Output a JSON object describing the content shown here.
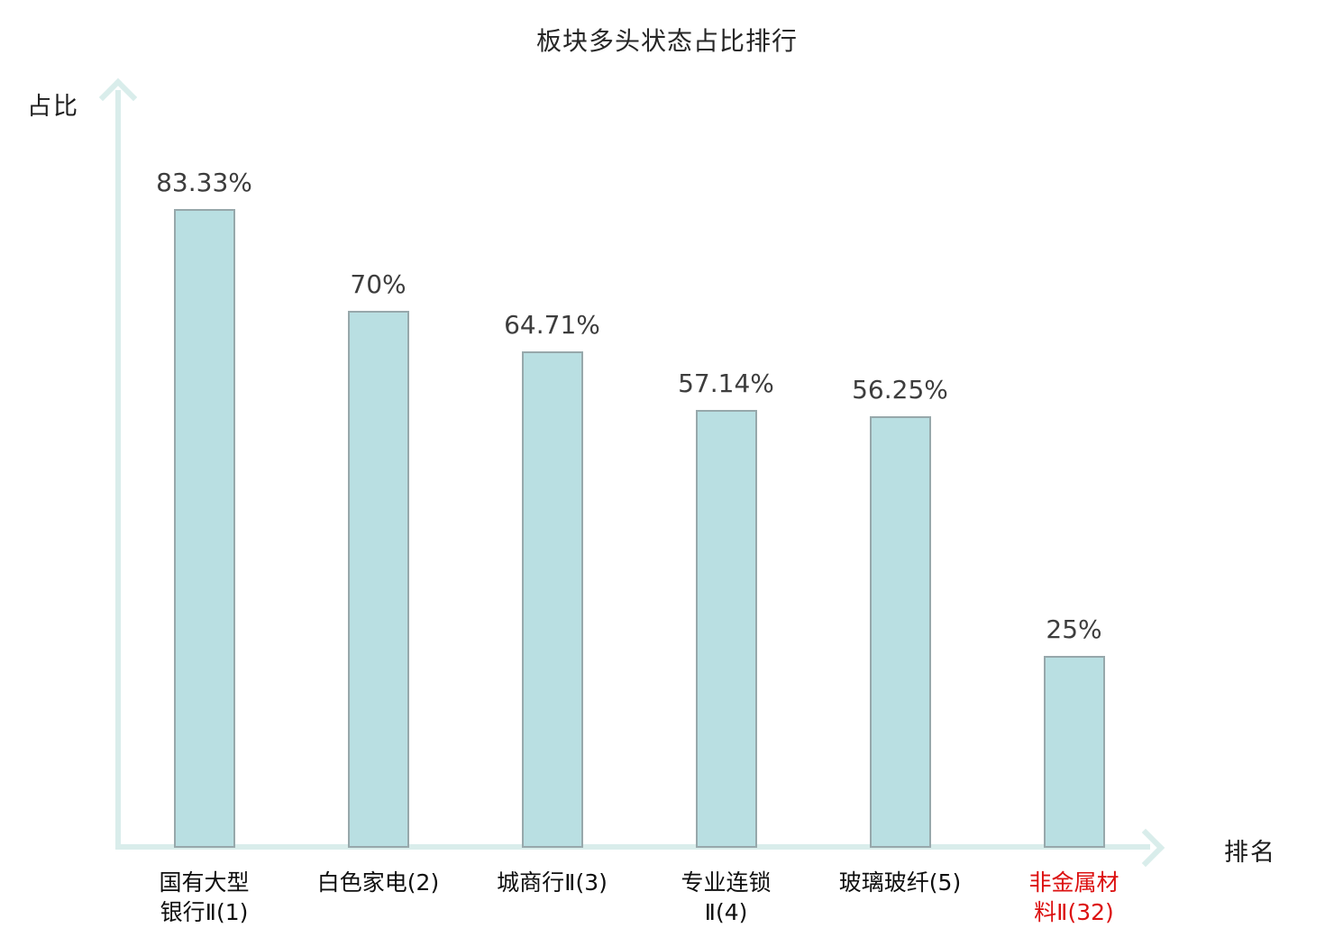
{
  "chart": {
    "title": "板块多头状态占比排行",
    "ylabel": "占比",
    "xlabel": "排名"
  },
  "chart_data": {
    "type": "bar",
    "title": "板块多头状态占比排行",
    "xlabel": "排名",
    "ylabel": "占比",
    "categories": [
      "国有大型银行Ⅱ(1)",
      "白色家电(2)",
      "城商行Ⅱ(3)",
      "专业连锁Ⅱ(4)",
      "玻璃玻纤(5)",
      "非金属材料Ⅱ(32)"
    ],
    "category_lines": [
      [
        "国有大型",
        "银行Ⅱ(1)"
      ],
      [
        "白色家电(2)"
      ],
      [
        "城商行Ⅱ(3)"
      ],
      [
        "专业连锁",
        "Ⅱ(4)"
      ],
      [
        "玻璃玻纤(5)"
      ],
      [
        "非金属材",
        "料Ⅱ(32)"
      ]
    ],
    "values": [
      83.33,
      70,
      64.71,
      57.14,
      56.25,
      25
    ],
    "value_labels": [
      "83.33%",
      "70%",
      "64.71%",
      "57.14%",
      "56.25%",
      "25%"
    ],
    "highlight_index": 5,
    "ylim": [
      0,
      100
    ],
    "grid": false,
    "legend": "none",
    "colors": {
      "bar_fill": "#b9dfe2",
      "bar_border": "#97a8ab",
      "axis": "#d9edeb",
      "value_text": "#3d3d3d",
      "category_text": "#0f0f0f",
      "highlight_text": "#dc1010"
    }
  }
}
